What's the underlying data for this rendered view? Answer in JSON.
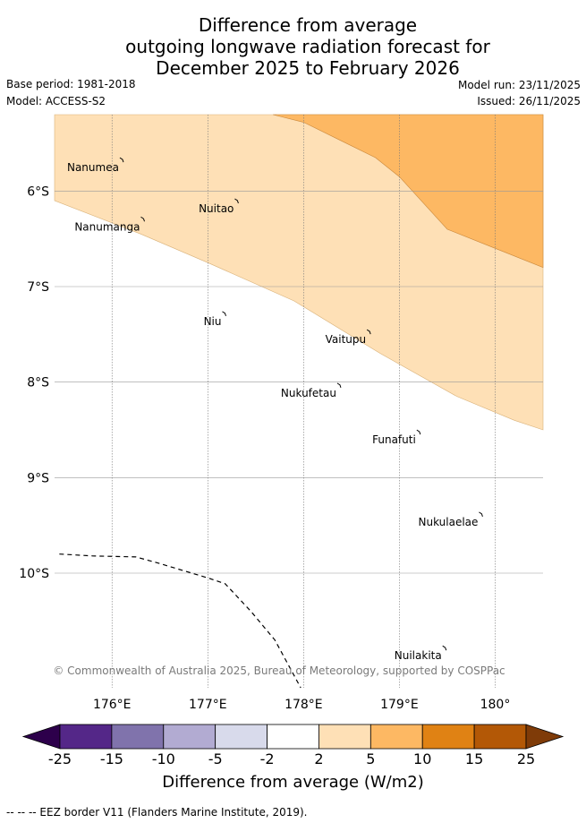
{
  "title": {
    "line1": "Difference from average",
    "line2": "outgoing longwave radiation forecast for",
    "line3": "December 2025 to February 2026"
  },
  "meta": {
    "base_period": "Base period: 1981-2018",
    "model": "Model: ACCESS-S2",
    "model_run": "Model run: 23/11/2025",
    "issued": "Issued: 26/11/2025"
  },
  "map": {
    "lon_range": [
      175.4,
      180.5
    ],
    "lat_range": [
      -11.2,
      -5.2
    ],
    "lon_ticks": [
      {
        "value": 176,
        "label": "176°E"
      },
      {
        "value": 177,
        "label": "177°E"
      },
      {
        "value": 178,
        "label": "178°E"
      },
      {
        "value": 179,
        "label": "179°E"
      },
      {
        "value": 180,
        "label": "180°"
      }
    ],
    "lat_ticks": [
      {
        "value": -6,
        "label": "6°S"
      },
      {
        "value": -7,
        "label": "7°S"
      },
      {
        "value": -8,
        "label": "8°S"
      },
      {
        "value": -9,
        "label": "9°S"
      },
      {
        "value": -10,
        "label": "10°S"
      }
    ],
    "places": [
      {
        "name": "Nanumea",
        "lon": 176.1,
        "lat": -5.67
      },
      {
        "name": "Nuitao",
        "lon": 177.3,
        "lat": -6.1
      },
      {
        "name": "Nanumanga",
        "lon": 176.32,
        "lat": -6.29
      },
      {
        "name": "Niu",
        "lon": 177.17,
        "lat": -7.28
      },
      {
        "name": "Vaitupu",
        "lon": 178.68,
        "lat": -7.47
      },
      {
        "name": "Nukufetau",
        "lon": 178.37,
        "lat": -8.03
      },
      {
        "name": "Funafuti",
        "lon": 179.2,
        "lat": -8.52
      },
      {
        "name": "Nukulaelae",
        "lon": 179.85,
        "lat": -9.38
      },
      {
        "name": "Nuilakita",
        "lon": 179.47,
        "lat": -10.78
      }
    ],
    "shading": [
      {
        "category": "2 to 5",
        "color": "#fee0b6",
        "boundary": [
          [
            175.4,
            -6.1
          ],
          [
            176.3,
            -6.45
          ],
          [
            177.0,
            -6.75
          ],
          [
            177.9,
            -7.15
          ],
          [
            178.8,
            -7.7
          ],
          [
            179.6,
            -8.15
          ],
          [
            180.2,
            -8.4
          ],
          [
            180.5,
            -8.5
          ]
        ]
      },
      {
        "category": "5 to 10",
        "color": "#fdb863",
        "boundary": [
          [
            177.68,
            -5.2
          ],
          [
            178.0,
            -5.28
          ],
          [
            178.75,
            -5.65
          ],
          [
            179.0,
            -5.85
          ],
          [
            179.5,
            -6.4
          ],
          [
            180.0,
            -6.6
          ],
          [
            180.5,
            -6.8
          ]
        ]
      }
    ],
    "eez_border": [
      [
        175.45,
        -9.8
      ],
      [
        175.8,
        -9.82
      ],
      [
        176.25,
        -9.83
      ],
      [
        176.5,
        -9.9
      ],
      [
        177.0,
        -10.05
      ],
      [
        177.18,
        -10.11
      ],
      [
        177.45,
        -10.4
      ],
      [
        177.7,
        -10.7
      ],
      [
        177.97,
        -11.2
      ]
    ],
    "copyright": "© Commonwealth of Australia 2025, Bureau of Meteorology, supported by COSPPac"
  },
  "colorbar": {
    "colors": [
      "#2d004b",
      "#542788",
      "#8073ac",
      "#b2abd2",
      "#d8daeb",
      "#ffffff",
      "#fee0b6",
      "#fdb863",
      "#e08214",
      "#b35806",
      "#7f3b08"
    ],
    "labels": [
      "-25",
      "-15",
      "-10",
      "-5",
      "-2",
      "2",
      "5",
      "10",
      "15",
      "25"
    ],
    "title": "Difference from average (W/m2)"
  },
  "footer": "--  --  -- EEZ border V11 (Flanders Marine Institute, 2019)."
}
